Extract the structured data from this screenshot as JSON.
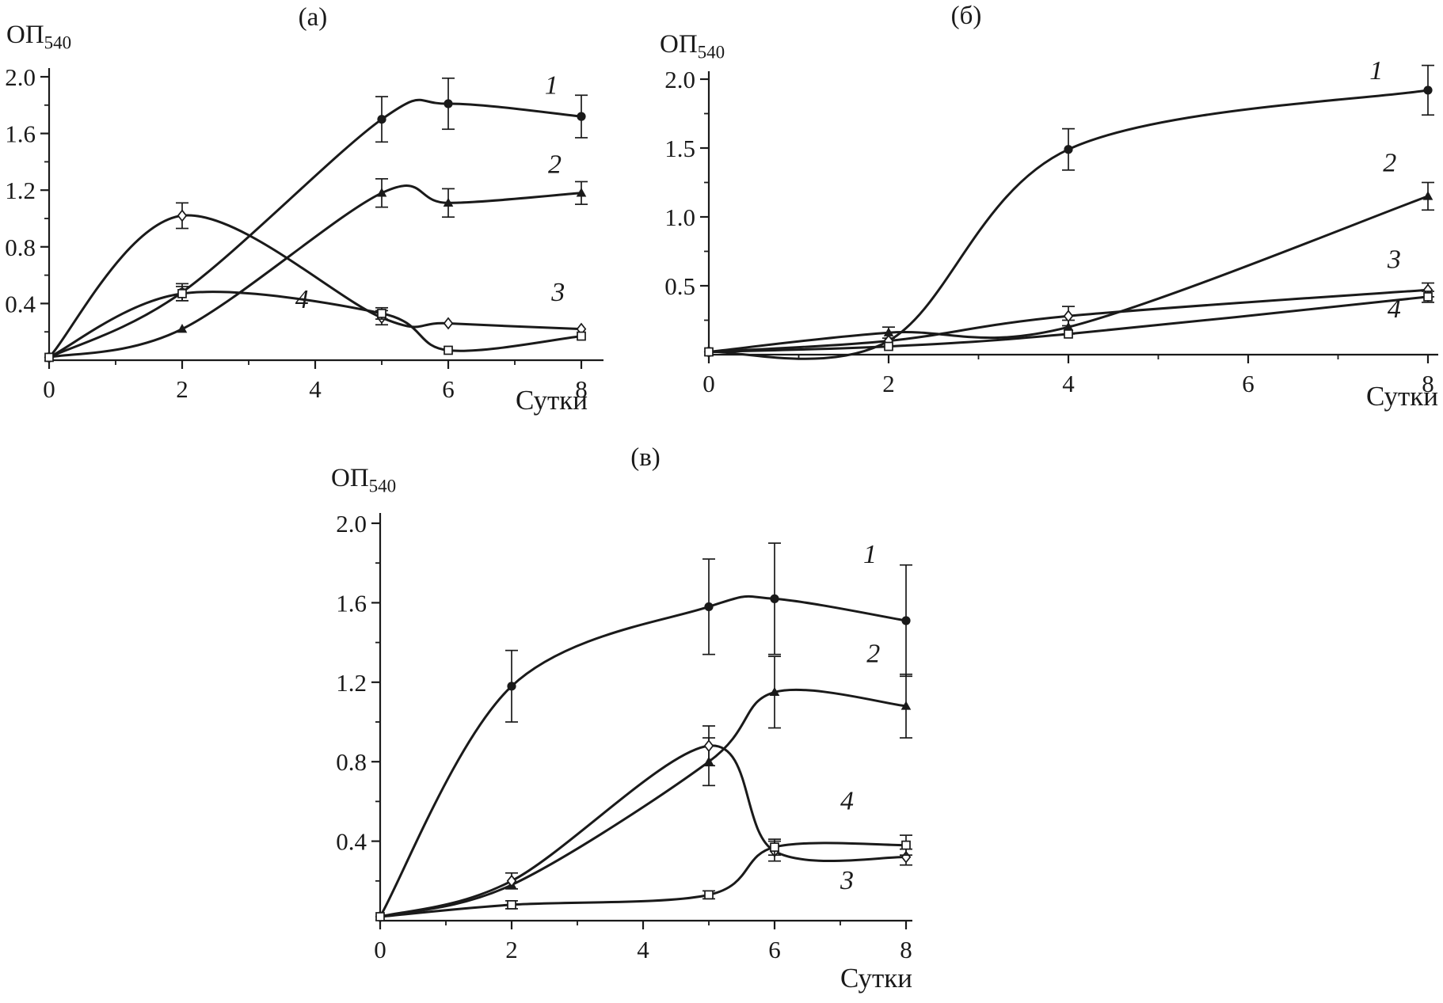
{
  "figure": {
    "background": "#ffffff",
    "ink_color": "#1a1a1a"
  },
  "chart_data": [
    {
      "type": "line",
      "title": "(а)",
      "ylabel_main": "ОП",
      "ylabel_sub": "540",
      "xlabel": "Сутки",
      "xlim": [
        0,
        8.4
      ],
      "ylim": [
        0,
        2.1
      ],
      "grid": false,
      "legend": "numeric labels next to curves",
      "xticks_major": [
        0,
        2,
        4,
        6,
        8
      ],
      "xticks_minor": [
        1,
        3,
        5,
        7
      ],
      "yticks_major": [
        0.4,
        0.8,
        1.2,
        1.6,
        2.0
      ],
      "yticks_minor": [
        0.2,
        0.6,
        1.0,
        1.4,
        1.8
      ],
      "series": [
        {
          "name": "1",
          "marker": "circle-filled",
          "x": [
            0,
            2,
            5,
            6,
            8
          ],
          "y": [
            0.02,
            0.48,
            1.7,
            1.81,
            1.72
          ],
          "err": [
            0,
            0.06,
            0.16,
            0.18,
            0.15
          ],
          "label_at": [
            7.45,
            1.88
          ]
        },
        {
          "name": "2",
          "marker": "triangle-filled",
          "x": [
            0,
            2,
            5,
            6,
            8
          ],
          "y": [
            0.02,
            0.22,
            1.18,
            1.11,
            1.18
          ],
          "err": [
            0,
            0,
            0.1,
            0.1,
            0.08
          ],
          "label_at": [
            7.5,
            1.32
          ]
        },
        {
          "name": "3",
          "marker": "diamond-open",
          "x": [
            0,
            2,
            5,
            6,
            8
          ],
          "y": [
            0.02,
            1.02,
            0.3,
            0.26,
            0.22
          ],
          "err": [
            0,
            0.09,
            0.05,
            0,
            0
          ],
          "label_at": [
            7.55,
            0.42
          ]
        },
        {
          "name": "4",
          "marker": "square-open",
          "x": [
            0,
            2,
            5,
            6,
            8
          ],
          "y": [
            0.02,
            0.47,
            0.33,
            0.07,
            0.17
          ],
          "err": [
            0,
            0.05,
            0.04,
            0,
            0
          ],
          "label_at": [
            3.7,
            0.37
          ]
        }
      ]
    },
    {
      "type": "line",
      "title": "(б)",
      "ylabel_main": "ОП",
      "ylabel_sub": "540",
      "xlabel": "Сутки",
      "xlim": [
        0,
        8.1
      ],
      "ylim": [
        0,
        2.05
      ],
      "grid": false,
      "legend": "numeric labels next to curves",
      "xticks_major": [
        0,
        2,
        4,
        6,
        8
      ],
      "xticks_minor": [
        1,
        3,
        5,
        7
      ],
      "yticks_major": [
        0.5,
        1.0,
        1.5,
        2.0
      ],
      "yticks_minor": [
        0.25,
        0.75,
        1.25,
        1.75
      ],
      "series": [
        {
          "name": "1",
          "marker": "circle-filled",
          "x": [
            0,
            2,
            4,
            8
          ],
          "y": [
            0.02,
            0.1,
            1.49,
            1.92
          ],
          "err": [
            0,
            0,
            0.15,
            0.18
          ],
          "label_at": [
            7.35,
            2.0
          ]
        },
        {
          "name": "2",
          "marker": "triangle-filled",
          "x": [
            0,
            2,
            4,
            8
          ],
          "y": [
            0.02,
            0.16,
            0.2,
            1.15
          ],
          "err": [
            0,
            0.04,
            0.05,
            0.1
          ],
          "label_at": [
            7.5,
            1.33
          ]
        },
        {
          "name": "3",
          "marker": "diamond-open",
          "x": [
            0,
            2,
            4,
            8
          ],
          "y": [
            0.02,
            0.1,
            0.28,
            0.47
          ],
          "err": [
            0,
            0,
            0.07,
            0.05
          ],
          "label_at": [
            7.55,
            0.63
          ]
        },
        {
          "name": "4",
          "marker": "square-open",
          "x": [
            0,
            2,
            4,
            8
          ],
          "y": [
            0.02,
            0.06,
            0.15,
            0.42
          ],
          "err": [
            0,
            0,
            0,
            0.04
          ],
          "label_at": [
            7.55,
            0.27
          ]
        }
      ]
    },
    {
      "type": "line",
      "title": "(в)",
      "ylabel_main": "ОП",
      "ylabel_sub": "540",
      "xlabel": "Сутки",
      "xlim": [
        0,
        8.1
      ],
      "ylim": [
        0,
        2.05
      ],
      "grid": false,
      "legend": "numeric labels next to curves",
      "xticks_major": [
        0,
        2,
        4,
        6,
        8
      ],
      "xticks_minor": [
        1,
        3,
        5,
        7
      ],
      "yticks_major": [
        0.4,
        0.8,
        1.2,
        1.6,
        2.0
      ],
      "yticks_minor": [
        0.2,
        0.6,
        1.0,
        1.4,
        1.8
      ],
      "series": [
        {
          "name": "1",
          "marker": "circle-filled",
          "x": [
            0,
            2,
            5,
            6,
            8
          ],
          "y": [
            0.02,
            1.18,
            1.58,
            1.62,
            1.51
          ],
          "err": [
            0,
            0.18,
            0.24,
            0.28,
            0.28
          ],
          "label_at": [
            7.35,
            1.8
          ]
        },
        {
          "name": "2",
          "marker": "triangle-filled",
          "x": [
            0,
            2,
            5,
            6,
            8
          ],
          "y": [
            0.02,
            0.18,
            0.8,
            1.15,
            1.08
          ],
          "err": [
            0,
            0,
            0.12,
            0.18,
            0.16
          ],
          "label_at": [
            7.4,
            1.3
          ]
        },
        {
          "name": "3",
          "marker": "diamond-open",
          "x": [
            0,
            2,
            5,
            6,
            8
          ],
          "y": [
            0.02,
            0.2,
            0.88,
            0.35,
            0.32
          ],
          "err": [
            0,
            0.04,
            0.1,
            0.05,
            0.04
          ],
          "label_at": [
            7.0,
            0.16
          ]
        },
        {
          "name": "4",
          "marker": "square-open",
          "x": [
            0,
            2,
            5,
            6,
            8
          ],
          "y": [
            0.02,
            0.08,
            0.13,
            0.37,
            0.38
          ],
          "err": [
            0,
            0.02,
            0.02,
            0.04,
            0.05
          ],
          "label_at": [
            7.0,
            0.56
          ]
        }
      ]
    }
  ]
}
